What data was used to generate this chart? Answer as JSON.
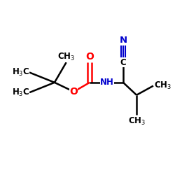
{
  "bg_color": "#ffffff",
  "bond_color": "#000000",
  "oxygen_color": "#ff0000",
  "nitrogen_color": "#0000cd",
  "nh_color": "#0000cd",
  "figsize": [
    2.5,
    2.5
  ],
  "dpi": 100,
  "xlim": [
    0,
    10
  ],
  "ylim": [
    0,
    10
  ],
  "lw": 1.8,
  "fs": 8.5
}
